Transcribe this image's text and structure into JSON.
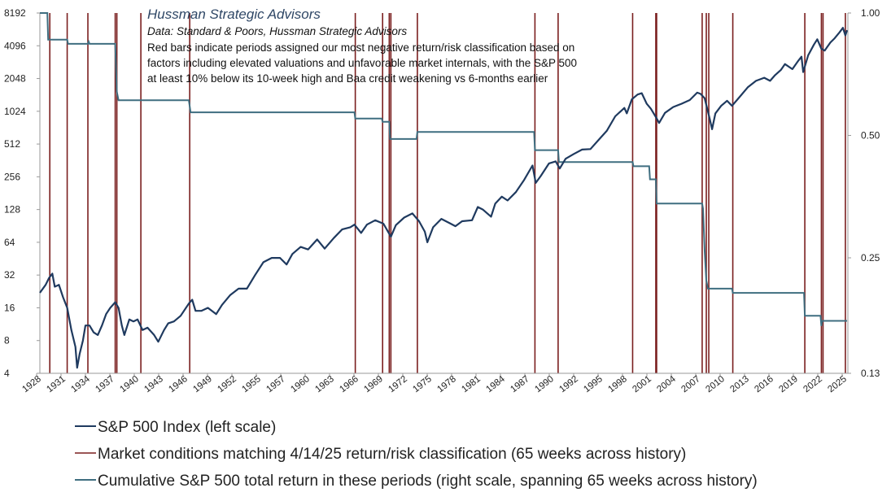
{
  "chart_data": {
    "type": "line",
    "title": "Hussman Strategic Advisors",
    "source": "Data: Standard & Poors, Hussman Strategic Advisors",
    "note_lines": [
      "Red bars indicate periods assigned our most negative return/risk classification based on",
      "factors including elevated valuations and unfavorable market internals, with the S&P 500",
      "at least 10% below its 10-week high and Baa credit weakening vs 6-months earlier"
    ],
    "x_tick_labels": [
      "1928",
      "1931",
      "1934",
      "1937",
      "1940",
      "1943",
      "1946",
      "1949",
      "1952",
      "1955",
      "1957",
      "1960",
      "1963",
      "1966",
      "1969",
      "1972",
      "1975",
      "1978",
      "1981",
      "1984",
      "1987",
      "1990",
      "1992",
      "1995",
      "1998",
      "2001",
      "2004",
      "2007",
      "2010",
      "2013",
      "2016",
      "2019",
      "2022",
      "2025"
    ],
    "xlim": [
      1928,
      2025.6
    ],
    "left_axis": {
      "scale": "log2",
      "ylim": [
        4,
        8192
      ],
      "ticks": [
        "8192",
        "4096",
        "2048",
        "1024",
        "512",
        "256",
        "128",
        "64",
        "32",
        "16",
        "8",
        "4"
      ]
    },
    "right_axis": {
      "scale": "log",
      "ylim": [
        0.13,
        1.0
      ],
      "ticks": [
        "1.00",
        "0.50",
        "0.25",
        "0.13"
      ]
    },
    "colors": {
      "sp500": "#1f3a5f",
      "bars": "#7a1f1f",
      "cumulative": "#3f6e80"
    },
    "series": [
      {
        "name": "S&P 500 Index (left scale)",
        "axis": "left",
        "points": [
          [
            1928.0,
            22
          ],
          [
            1928.7,
            26
          ],
          [
            1929.1,
            30
          ],
          [
            1929.5,
            33
          ],
          [
            1929.8,
            25
          ],
          [
            1930.3,
            26
          ],
          [
            1930.8,
            20
          ],
          [
            1931.3,
            16
          ],
          [
            1931.8,
            10
          ],
          [
            1932.3,
            7
          ],
          [
            1932.5,
            4.5
          ],
          [
            1932.8,
            6
          ],
          [
            1933.2,
            8
          ],
          [
            1933.5,
            11
          ],
          [
            1934.0,
            11
          ],
          [
            1934.5,
            9.5
          ],
          [
            1935.0,
            9
          ],
          [
            1935.5,
            11
          ],
          [
            1936.0,
            14
          ],
          [
            1936.5,
            16
          ],
          [
            1937.1,
            18
          ],
          [
            1937.5,
            16
          ],
          [
            1937.9,
            11
          ],
          [
            1938.2,
            9
          ],
          [
            1938.8,
            12.5
          ],
          [
            1939.3,
            12
          ],
          [
            1939.8,
            12.5
          ],
          [
            1940.4,
            10
          ],
          [
            1941.0,
            10.5
          ],
          [
            1941.8,
            9
          ],
          [
            1942.3,
            7.8
          ],
          [
            1943.0,
            10
          ],
          [
            1943.5,
            11.5
          ],
          [
            1944.2,
            12
          ],
          [
            1945.0,
            13.5
          ],
          [
            1946.0,
            17.5
          ],
          [
            1946.4,
            19
          ],
          [
            1946.8,
            15
          ],
          [
            1947.5,
            15
          ],
          [
            1948.3,
            16
          ],
          [
            1949.3,
            14
          ],
          [
            1950.0,
            17
          ],
          [
            1951.0,
            21
          ],
          [
            1952.0,
            24
          ],
          [
            1953.0,
            24
          ],
          [
            1954.0,
            32
          ],
          [
            1955.0,
            42
          ],
          [
            1956.0,
            46
          ],
          [
            1957.0,
            46
          ],
          [
            1957.8,
            40
          ],
          [
            1958.5,
            50
          ],
          [
            1959.5,
            58
          ],
          [
            1960.4,
            55
          ],
          [
            1961.5,
            68
          ],
          [
            1962.4,
            56
          ],
          [
            1963.5,
            70
          ],
          [
            1964.5,
            84
          ],
          [
            1965.5,
            88
          ],
          [
            1966.0,
            93
          ],
          [
            1966.8,
            78
          ],
          [
            1967.5,
            93
          ],
          [
            1968.5,
            102
          ],
          [
            1969.5,
            95
          ],
          [
            1970.4,
            72
          ],
          [
            1971.0,
            92
          ],
          [
            1972.0,
            108
          ],
          [
            1973.0,
            118
          ],
          [
            1973.8,
            100
          ],
          [
            1974.5,
            80
          ],
          [
            1974.8,
            64
          ],
          [
            1975.5,
            88
          ],
          [
            1976.5,
            105
          ],
          [
            1977.5,
            96
          ],
          [
            1978.2,
            90
          ],
          [
            1979.0,
            100
          ],
          [
            1980.2,
            102
          ],
          [
            1980.9,
            135
          ],
          [
            1981.5,
            128
          ],
          [
            1982.5,
            110
          ],
          [
            1983.0,
            145
          ],
          [
            1983.8,
            168
          ],
          [
            1984.5,
            155
          ],
          [
            1985.5,
            185
          ],
          [
            1986.5,
            240
          ],
          [
            1987.5,
            325
          ],
          [
            1987.9,
            225
          ],
          [
            1988.5,
            260
          ],
          [
            1989.5,
            340
          ],
          [
            1990.3,
            355
          ],
          [
            1990.8,
            305
          ],
          [
            1991.5,
            375
          ],
          [
            1992.5,
            415
          ],
          [
            1993.5,
            455
          ],
          [
            1994.5,
            460
          ],
          [
            1995.5,
            560
          ],
          [
            1996.5,
            680
          ],
          [
            1997.5,
            920
          ],
          [
            1998.6,
            1100
          ],
          [
            1998.9,
            980
          ],
          [
            1999.5,
            1320
          ],
          [
            2000.2,
            1460
          ],
          [
            2000.7,
            1500
          ],
          [
            2001.3,
            1200
          ],
          [
            2001.8,
            1080
          ],
          [
            2002.5,
            880
          ],
          [
            2002.8,
            800
          ],
          [
            2003.5,
            990
          ],
          [
            2004.5,
            1120
          ],
          [
            2005.5,
            1200
          ],
          [
            2006.5,
            1300
          ],
          [
            2007.4,
            1520
          ],
          [
            2007.8,
            1480
          ],
          [
            2008.3,
            1350
          ],
          [
            2008.9,
            880
          ],
          [
            2009.2,
            700
          ],
          [
            2009.6,
            980
          ],
          [
            2010.3,
            1150
          ],
          [
            2011.0,
            1280
          ],
          [
            2011.6,
            1150
          ],
          [
            2012.5,
            1380
          ],
          [
            2013.5,
            1700
          ],
          [
            2014.5,
            1950
          ],
          [
            2015.5,
            2080
          ],
          [
            2016.2,
            1950
          ],
          [
            2016.8,
            2200
          ],
          [
            2017.5,
            2450
          ],
          [
            2018.0,
            2780
          ],
          [
            2018.9,
            2500
          ],
          [
            2019.6,
            2980
          ],
          [
            2020.0,
            3250
          ],
          [
            2020.2,
            2350
          ],
          [
            2020.8,
            3350
          ],
          [
            2021.5,
            4200
          ],
          [
            2021.9,
            4700
          ],
          [
            2022.4,
            3850
          ],
          [
            2022.8,
            3700
          ],
          [
            2023.5,
            4400
          ],
          [
            2024.0,
            4800
          ],
          [
            2024.6,
            5450
          ],
          [
            2025.0,
            6000
          ],
          [
            2025.3,
            5100
          ],
          [
            2025.5,
            5700
          ]
        ]
      },
      {
        "name": "Cumulative S&P 500 total return in these periods (right scale, spanning 65 weeks across history)",
        "axis": "right",
        "points": [
          [
            1928.0,
            1.0
          ],
          [
            1928.9,
            1.0
          ],
          [
            1929.0,
            0.86
          ],
          [
            1931.3,
            0.86
          ],
          [
            1931.4,
            0.84
          ],
          [
            1933.8,
            0.84
          ],
          [
            1933.9,
            0.85
          ],
          [
            1934.0,
            0.84
          ],
          [
            1937.1,
            0.84
          ],
          [
            1937.3,
            0.64
          ],
          [
            1937.5,
            0.61
          ],
          [
            1946.0,
            0.61
          ],
          [
            1946.2,
            0.57
          ],
          [
            1966.0,
            0.57
          ],
          [
            1966.1,
            0.55
          ],
          [
            1969.3,
            0.55
          ],
          [
            1969.4,
            0.54
          ],
          [
            1970.2,
            0.54
          ],
          [
            1970.3,
            0.49
          ],
          [
            1973.5,
            0.49
          ],
          [
            1973.6,
            0.51
          ],
          [
            1987.7,
            0.51
          ],
          [
            1987.8,
            0.46
          ],
          [
            1990.6,
            0.46
          ],
          [
            1990.7,
            0.43
          ],
          [
            1999.6,
            0.43
          ],
          [
            1999.7,
            0.42
          ],
          [
            2001.6,
            0.42
          ],
          [
            2001.7,
            0.39
          ],
          [
            2002.4,
            0.39
          ],
          [
            2002.5,
            0.34
          ],
          [
            2008.0,
            0.34
          ],
          [
            2008.1,
            0.33
          ],
          [
            2008.3,
            0.26
          ],
          [
            2008.5,
            0.22
          ],
          [
            2008.7,
            0.21
          ],
          [
            2011.6,
            0.21
          ],
          [
            2011.7,
            0.205
          ],
          [
            2020.3,
            0.205
          ],
          [
            2020.4,
            0.18
          ],
          [
            2022.3,
            0.18
          ],
          [
            2022.4,
            0.17
          ],
          [
            2022.5,
            0.175
          ],
          [
            2025.3,
            0.175
          ],
          [
            2025.5,
            0.175
          ]
        ]
      }
    ],
    "red_bars": [
      1929.2,
      1931.3,
      1933.8,
      1937.1,
      1937.3,
      1940.2,
      1946.1,
      1966.1,
      1969.4,
      1970.2,
      1970.4,
      1973.6,
      1987.8,
      1990.6,
      1999.6,
      2002.4,
      2002.5,
      2008.0,
      2008.5,
      2008.8,
      2011.7,
      2020.4,
      2022.4,
      2022.6,
      2025.3
    ],
    "legend": [
      {
        "label": "S&P 500 Index (left scale)",
        "color_key": "sp500"
      },
      {
        "label": "Market conditions matching 4/14/25 return/risk classification (65 weeks across history)",
        "color_key": "bars"
      },
      {
        "label": "Cumulative S&P 500 total return in these periods (right scale, spanning 65 weeks across history)",
        "color_key": "cumulative"
      }
    ]
  }
}
